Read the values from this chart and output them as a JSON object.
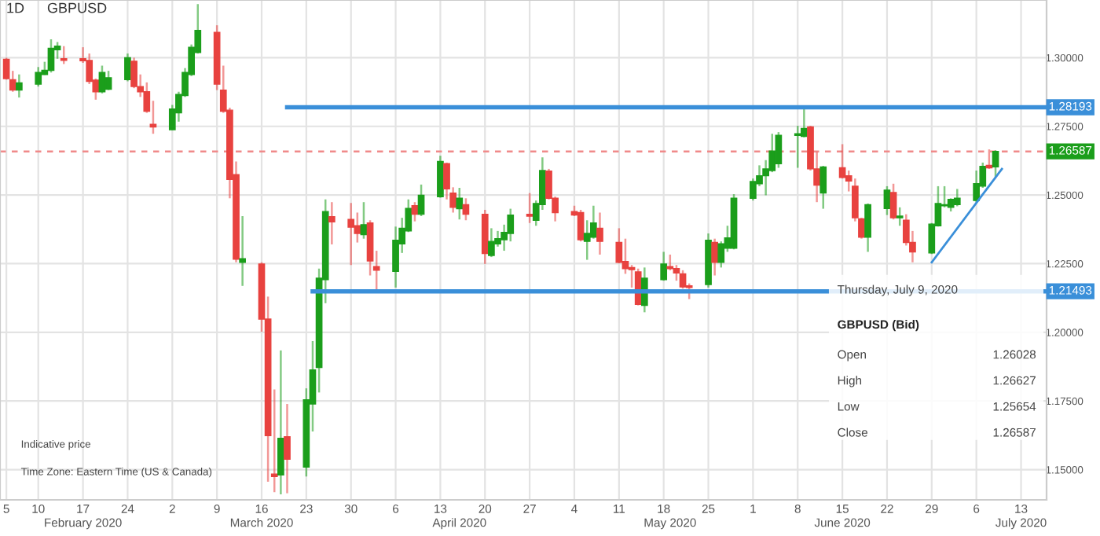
{
  "chart_data": {
    "type": "candlestick",
    "title": "1D",
    "subtitle": "GBPUSD",
    "x": [
      "2020-02-05",
      "2020-02-06",
      "2020-02-07",
      "2020-02-10",
      "2020-02-11",
      "2020-02-12",
      "2020-02-13",
      "2020-02-14",
      "2020-02-17",
      "2020-02-18",
      "2020-02-19",
      "2020-02-20",
      "2020-02-21",
      "2020-02-24",
      "2020-02-25",
      "2020-02-26",
      "2020-02-27",
      "2020-02-28",
      "2020-03-02",
      "2020-03-03",
      "2020-03-04",
      "2020-03-05",
      "2020-03-06",
      "2020-03-09",
      "2020-03-10",
      "2020-03-11",
      "2020-03-12",
      "2020-03-13",
      "2020-03-16",
      "2020-03-17",
      "2020-03-18",
      "2020-03-19",
      "2020-03-20",
      "2020-03-23",
      "2020-03-24",
      "2020-03-25",
      "2020-03-26",
      "2020-03-27",
      "2020-03-30",
      "2020-03-31",
      "2020-04-01",
      "2020-04-02",
      "2020-04-03",
      "2020-04-06",
      "2020-04-07",
      "2020-04-08",
      "2020-04-09",
      "2020-04-10",
      "2020-04-13",
      "2020-04-14",
      "2020-04-15",
      "2020-04-16",
      "2020-04-17",
      "2020-04-20",
      "2020-04-21",
      "2020-04-22",
      "2020-04-23",
      "2020-04-24",
      "2020-04-27",
      "2020-04-28",
      "2020-04-29",
      "2020-04-30",
      "2020-05-01",
      "2020-05-04",
      "2020-05-05",
      "2020-05-06",
      "2020-05-07",
      "2020-05-08",
      "2020-05-11",
      "2020-05-12",
      "2020-05-13",
      "2020-05-14",
      "2020-05-15",
      "2020-05-18",
      "2020-05-19",
      "2020-05-20",
      "2020-05-21",
      "2020-05-22",
      "2020-05-25",
      "2020-05-26",
      "2020-05-27",
      "2020-05-28",
      "2020-05-29",
      "2020-06-01",
      "2020-06-02",
      "2020-06-03",
      "2020-06-04",
      "2020-06-05",
      "2020-06-08",
      "2020-06-09",
      "2020-06-10",
      "2020-06-11",
      "2020-06-12",
      "2020-06-15",
      "2020-06-16",
      "2020-06-17",
      "2020-06-18",
      "2020-06-19",
      "2020-06-22",
      "2020-06-23",
      "2020-06-24",
      "2020-06-25",
      "2020-06-26",
      "2020-06-29",
      "2020-06-30",
      "2020-07-01",
      "2020-07-02",
      "2020-07-03",
      "2020-07-06",
      "2020-07-07",
      "2020-07-08",
      "2020-07-09"
    ],
    "ohlc": [
      [
        1.2994,
        1.3,
        1.292,
        1.2924
      ],
      [
        1.292,
        1.2952,
        1.2876,
        1.2882
      ],
      [
        1.2882,
        1.2939,
        1.2855,
        1.2908
      ],
      [
        1.2904,
        1.2966,
        1.2895,
        1.2946
      ],
      [
        1.2939,
        1.2985,
        1.2937,
        1.2954
      ],
      [
        1.2954,
        1.3067,
        1.2946,
        1.3034
      ],
      [
        1.3029,
        1.3057,
        1.2996,
        1.3042
      ],
      [
        1.2996,
        1.3042,
        1.2977,
        1.299
      ],
      [
        1.2996,
        1.3038,
        1.2981,
        1.2989
      ],
      [
        1.299,
        1.3015,
        1.2904,
        1.2914
      ],
      [
        1.2918,
        1.2924,
        1.2847,
        1.2876
      ],
      [
        1.2876,
        1.2971,
        1.287,
        1.2946
      ],
      [
        1.2885,
        1.2952,
        1.2882,
        1.2927
      ],
      [
        1.292,
        1.3015,
        1.2914,
        1.3
      ],
      [
        1.2987,
        1.3,
        1.2889,
        1.2895
      ],
      [
        1.2895,
        1.2939,
        1.2857,
        1.2876
      ],
      [
        1.2876,
        1.291,
        1.2799,
        1.2805
      ],
      [
        1.2757,
        1.2843,
        1.2723,
        1.2748
      ],
      [
        1.2738,
        1.2828,
        1.2736,
        1.2813
      ],
      [
        1.2799,
        1.2876,
        1.2767,
        1.2866
      ],
      [
        1.2862,
        1.2962,
        1.2857,
        1.2946
      ],
      [
        1.2939,
        1.3048,
        1.2933,
        1.3038
      ],
      [
        1.3019,
        1.3195,
        1.3015,
        1.3099
      ],
      [
        1.3092,
        1.3118,
        1.2882,
        1.2904
      ],
      [
        1.2882,
        1.2971,
        1.2799,
        1.2805
      ],
      [
        1.2809,
        1.2818,
        1.2488,
        1.2557
      ],
      [
        1.2574,
        1.2622,
        1.2255,
        1.2266
      ],
      [
        1.2255,
        1.2423,
        1.2169,
        1.2268
      ],
      [
        1.2249,
        1.2255,
        1.2002,
        1.2048
      ],
      [
        1.2048,
        1.213,
        1.1456,
        1.1624
      ],
      [
        1.1484,
        1.1792,
        1.1418,
        1.1475
      ],
      [
        1.1481,
        1.1934,
        1.141,
        1.1614
      ],
      [
        1.162,
        1.1739,
        1.1414,
        1.1538
      ],
      [
        1.1509,
        1.1796,
        1.1475,
        1.1754
      ],
      [
        1.1739,
        1.1968,
        1.1639,
        1.1863
      ],
      [
        1.1872,
        1.2232,
        1.1781,
        1.2197
      ],
      [
        1.2192,
        1.2484,
        1.2106,
        1.244
      ],
      [
        1.2421,
        1.2474,
        1.232,
        1.2402
      ],
      [
        1.2411,
        1.2471,
        1.2245,
        1.2383
      ],
      [
        1.2388,
        1.2436,
        1.2327,
        1.236
      ],
      [
        1.2356,
        1.2474,
        1.2341,
        1.2392
      ],
      [
        1.2398,
        1.2408,
        1.2207,
        1.226
      ],
      [
        1.2239,
        1.2297,
        1.215,
        1.2226
      ],
      [
        1.2222,
        1.2385,
        1.2163,
        1.2335
      ],
      [
        1.2322,
        1.2417,
        1.2289,
        1.2379
      ],
      [
        1.2369,
        1.2484,
        1.2365,
        1.2451
      ],
      [
        1.2461,
        1.2474,
        1.2404,
        1.243
      ],
      [
        1.243,
        1.2538,
        1.2423,
        1.2499
      ],
      [
        1.2494,
        1.2643,
        1.249,
        1.2622
      ],
      [
        1.2614,
        1.2618,
        1.2484,
        1.2522
      ],
      [
        1.2507,
        1.2528,
        1.2436,
        1.2455
      ],
      [
        1.245,
        1.2526,
        1.2411,
        1.2488
      ],
      [
        1.2465,
        1.2488,
        1.2408,
        1.243
      ],
      [
        1.243,
        1.2446,
        1.2249,
        1.2287
      ],
      [
        1.228,
        1.2379,
        1.2274,
        1.2331
      ],
      [
        1.2322,
        1.2369,
        1.2312,
        1.2341
      ],
      [
        1.2337,
        1.2392,
        1.2297,
        1.2364
      ],
      [
        1.236,
        1.245,
        1.2331,
        1.2427
      ],
      [
        1.243,
        1.2507,
        1.2398,
        1.2423
      ],
      [
        1.2408,
        1.248,
        1.2388,
        1.2469
      ],
      [
        1.2465,
        1.2637,
        1.2446,
        1.2589
      ],
      [
        1.2587,
        1.2595,
        1.2484,
        1.2488
      ],
      [
        1.2488,
        1.2494,
        1.2404,
        1.2436
      ],
      [
        1.244,
        1.2461,
        1.2423,
        1.2427
      ],
      [
        1.2436,
        1.2446,
        1.2331,
        1.2337
      ],
      [
        1.2331,
        1.2408,
        1.2264,
        1.236
      ],
      [
        1.2346,
        1.2461,
        1.2341,
        1.2398
      ],
      [
        1.2379,
        1.2436,
        1.2283,
        1.2331
      ],
      [
        1.2327,
        1.2379,
        1.2251,
        1.2255
      ],
      [
        1.2258,
        1.2341,
        1.2213,
        1.2232
      ],
      [
        1.2236,
        1.2245,
        1.2163,
        1.2228
      ],
      [
        1.222,
        1.2232,
        1.2098,
        1.2102
      ],
      [
        1.2098,
        1.2236,
        1.2073,
        1.2197
      ],
      [
        1.2192,
        1.2293,
        1.2188,
        1.2249
      ],
      [
        1.2239,
        1.2283,
        1.2226,
        1.2232
      ],
      [
        1.2232,
        1.2245,
        1.2188,
        1.2216
      ],
      [
        1.2213,
        1.2226,
        1.2159,
        1.2165
      ],
      [
        1.2169,
        1.2178,
        1.2121,
        1.2163
      ],
      [
        1.2174,
        1.236,
        1.2163,
        1.2335
      ],
      [
        1.2327,
        1.2341,
        1.2207,
        1.2255
      ],
      [
        1.2255,
        1.2331,
        1.2236,
        1.2322
      ],
      [
        1.2306,
        1.2388,
        1.2293,
        1.2344
      ],
      [
        1.2306,
        1.2503,
        1.2302,
        1.2488
      ],
      [
        1.2488,
        1.256,
        1.248,
        1.2549
      ],
      [
        1.2541,
        1.2608,
        1.2532,
        1.257
      ],
      [
        1.257,
        1.2627,
        1.2499,
        1.2595
      ],
      [
        1.2589,
        1.2723,
        1.2583,
        1.266
      ],
      [
        1.2614,
        1.2729,
        1.2599,
        1.2717
      ],
      [
        1.2717,
        1.2752,
        1.2599,
        1.2723
      ],
      [
        1.2713,
        1.2813,
        1.271,
        1.2742
      ],
      [
        1.2748,
        1.2752,
        1.2589,
        1.2595
      ],
      [
        1.2595,
        1.2656,
        1.2474,
        1.2536
      ],
      [
        1.2507,
        1.2606,
        1.245,
        1.2602
      ],
      [
        1.2599,
        1.2685,
        1.256,
        1.2564
      ],
      [
        1.257,
        1.2589,
        1.2513,
        1.2551
      ],
      [
        1.2532,
        1.256,
        1.2404,
        1.2417
      ],
      [
        1.2413,
        1.2417,
        1.2341,
        1.2346
      ],
      [
        1.2346,
        1.2469,
        1.2293,
        1.2465
      ],
      [
        1.2451,
        1.2532,
        1.2427,
        1.2518
      ],
      [
        1.2509,
        1.2541,
        1.2411,
        1.2417
      ],
      [
        1.2417,
        1.2455,
        1.2388,
        1.2423
      ],
      [
        1.2408,
        1.243,
        1.2316,
        1.2327
      ],
      [
        1.2327,
        1.2369,
        1.2255,
        1.2293
      ],
      [
        1.2289,
        1.2398,
        1.2285,
        1.2394
      ],
      [
        1.2388,
        1.2532,
        1.2385,
        1.2469
      ],
      [
        1.2461,
        1.2532,
        1.2455,
        1.2465
      ],
      [
        1.2455,
        1.2488,
        1.244,
        1.2484
      ],
      [
        1.2465,
        1.2522,
        1.2459,
        1.2488
      ],
      [
        1.248,
        1.2589,
        1.2474,
        1.2541
      ],
      [
        1.2532,
        1.2618,
        1.2526,
        1.2604
      ],
      [
        1.2608,
        1.2666,
        1.2595,
        1.2599
      ],
      [
        1.26028,
        1.26627,
        1.25654,
        1.26587
      ]
    ],
    "colors": [
      "#e8423f",
      "#e8423f",
      "#1b9e1b",
      "#1b9e1b",
      "#1b9e1b",
      "#1b9e1b",
      "#1b9e1b",
      "#e8423f",
      "#e8423f",
      "#e8423f",
      "#e8423f",
      "#1b9e1b",
      "#1b9e1b",
      "#1b9e1b",
      "#e8423f",
      "#e8423f",
      "#e8423f",
      "#e8423f",
      "#1b9e1b",
      "#1b9e1b",
      "#1b9e1b",
      "#1b9e1b",
      "#1b9e1b",
      "#e8423f",
      "#e8423f",
      "#e8423f",
      "#e8423f",
      "#1b9e1b",
      "#e8423f",
      "#e8423f",
      "#e8423f",
      "#1b9e1b",
      "#e8423f",
      "#1b9e1b",
      "#1b9e1b",
      "#1b9e1b",
      "#1b9e1b",
      "#e8423f",
      "#e8423f",
      "#e8423f",
      "#1b9e1b",
      "#e8423f",
      "#e8423f",
      "#1b9e1b",
      "#1b9e1b",
      "#1b9e1b",
      "#e8423f",
      "#1b9e1b",
      "#1b9e1b",
      "#e8423f",
      "#e8423f",
      "#1b9e1b",
      "#e8423f",
      "#e8423f",
      "#1b9e1b",
      "#1b9e1b",
      "#1b9e1b",
      "#1b9e1b",
      "#e8423f",
      "#1b9e1b",
      "#1b9e1b",
      "#e8423f",
      "#e8423f",
      "#e8423f",
      "#e8423f",
      "#1b9e1b",
      "#1b9e1b",
      "#e8423f",
      "#e8423f",
      "#e8423f",
      "#e8423f",
      "#e8423f",
      "#1b9e1b",
      "#1b9e1b",
      "#e8423f",
      "#e8423f",
      "#e8423f",
      "#e8423f",
      "#1b9e1b",
      "#e8423f",
      "#1b9e1b",
      "#1b9e1b",
      "#1b9e1b",
      "#1b9e1b",
      "#1b9e1b",
      "#1b9e1b",
      "#1b9e1b",
      "#1b9e1b",
      "#1b9e1b",
      "#1b9e1b",
      "#e8423f",
      "#e8423f",
      "#1b9e1b",
      "#e8423f",
      "#e8423f",
      "#e8423f",
      "#e8423f",
      "#1b9e1b",
      "#1b9e1b",
      "#e8423f",
      "#1b9e1b",
      "#e8423f",
      "#e8423f",
      "#1b9e1b",
      "#1b9e1b",
      "#1b9e1b",
      "#1b9e1b",
      "#1b9e1b",
      "#1b9e1b",
      "#1b9e1b",
      "#e8423f",
      "#1b9e1b"
    ],
    "series": [
      {
        "type": "line",
        "name": "1.28193",
        "color": "#3a8fd9",
        "x": [
          "2020-03-20",
          "2020-07-17"
        ],
        "values": [
          1.28193,
          1.28193
        ]
      },
      {
        "type": "line",
        "name": "1.21493",
        "color": "#3a8fd9",
        "x": [
          "2020-03-24",
          "2020-07-17"
        ],
        "values": [
          1.21493,
          1.21493
        ]
      },
      {
        "type": "line",
        "color": "#3a8fd9",
        "x": [
          "2020-06-29",
          "2020-07-10"
        ],
        "values": [
          1.2255,
          1.2595
        ]
      }
    ],
    "ref_lines": [
      {
        "axis": "y",
        "value": 1.26587,
        "label": "1.26587",
        "color": "#f08a8a",
        "line_style": "dashed"
      }
    ],
    "xlim": [
      "2020-02-04",
      "2020-07-17"
    ],
    "x2lim": [
      "2020-02-04",
      "2020-07-17"
    ],
    "xticks": [
      {
        "value": "2020-02-05",
        "label": "5"
      },
      {
        "value": "2020-02-10",
        "label": "10"
      },
      {
        "value": "2020-02-17",
        "label": "17"
      },
      {
        "value": "2020-02-24",
        "label": "24"
      },
      {
        "value": "2020-03-02",
        "label": "2"
      },
      {
        "value": "2020-03-09",
        "label": "9"
      },
      {
        "value": "2020-03-16",
        "label": "16"
      },
      {
        "value": "2020-03-23",
        "label": "23"
      },
      {
        "value": "2020-03-30",
        "label": "30"
      },
      {
        "value": "2020-04-06",
        "label": "6"
      },
      {
        "value": "2020-04-13",
        "label": "13"
      },
      {
        "value": "2020-04-20",
        "label": "20"
      },
      {
        "value": "2020-04-27",
        "label": "27"
      },
      {
        "value": "2020-05-04",
        "label": "4"
      },
      {
        "value": "2020-05-11",
        "label": "11"
      },
      {
        "value": "2020-05-18",
        "label": "18"
      },
      {
        "value": "2020-05-25",
        "label": "25"
      },
      {
        "value": "2020-06-01",
        "label": "1"
      },
      {
        "value": "2020-06-08",
        "label": "8"
      },
      {
        "value": "2020-06-15",
        "label": "15"
      },
      {
        "value": "2020-06-22",
        "label": "22"
      },
      {
        "value": "2020-06-29",
        "label": "29"
      },
      {
        "value": "2020-07-06",
        "label": "6"
      },
      {
        "value": "2020-07-13",
        "label": "13"
      }
    ],
    "x2ticks": [
      {
        "value": "2020-02-17",
        "label": "February 2020"
      },
      {
        "value": "2020-03-16",
        "label": "March 2020"
      },
      {
        "value": "2020-04-16",
        "label": "April 2020"
      },
      {
        "value": "2020-05-19",
        "label": "May 2020"
      },
      {
        "value": "2020-06-15",
        "label": "June 2020"
      },
      {
        "value": "2020-07-13",
        "label": "July 2020"
      }
    ],
    "ylim": [
      1.139,
      1.321
    ],
    "yticks": [
      {
        "value": 1.15,
        "label": "1.15000"
      },
      {
        "value": 1.175,
        "label": "1.17500"
      },
      {
        "value": 1.2,
        "label": "1.20000"
      },
      {
        "value": 1.225,
        "label": "1.22500"
      },
      {
        "value": 1.25,
        "label": "1.25000"
      },
      {
        "value": 1.275,
        "label": "1.27500"
      },
      {
        "value": 1.3,
        "label": "1.30000"
      }
    ],
    "grid": true,
    "annotations": [
      "Indicative price",
      "Time Zone: Eastern Time (US & Canada)",
      "Thursday, July 9, 2020",
      "GBPUSD (Bid)",
      "Open",
      "1.26028",
      "High",
      "1.26627",
      "Low",
      "1.25654",
      "Close",
      "1.26587"
    ]
  }
}
